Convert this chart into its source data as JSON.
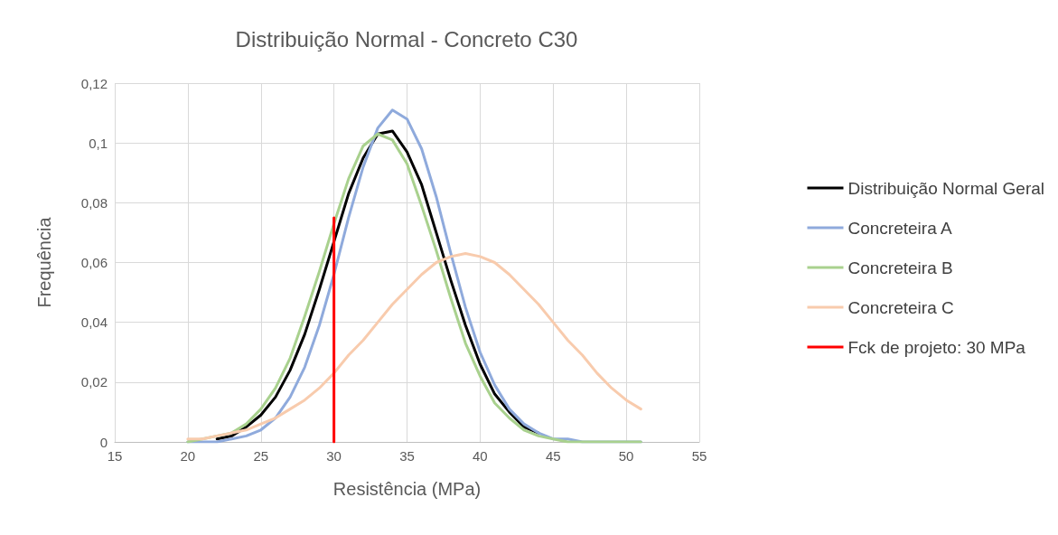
{
  "chart_data": {
    "type": "line",
    "title": "Distribuição Normal - Concreto C30",
    "xlabel": "Resistência (MPa)",
    "ylabel": "Frequência",
    "xlim": [
      15,
      55
    ],
    "xticks": [
      15,
      20,
      25,
      30,
      35,
      40,
      45,
      50,
      55
    ],
    "ylim": [
      0,
      0.12
    ],
    "yticks": [
      {
        "value": 0,
        "label": "0"
      },
      {
        "value": 0.02,
        "label": "0,02"
      },
      {
        "value": 0.04,
        "label": "0,04"
      },
      {
        "value": 0.06,
        "label": "0,06"
      },
      {
        "value": 0.08,
        "label": "0,08"
      },
      {
        "value": 0.1,
        "label": "0,1"
      },
      {
        "value": 0.12,
        "label": "0,12"
      }
    ],
    "grid": true,
    "legend": "right",
    "marker": "none",
    "line_style": "solid",
    "series": [
      {
        "name": "Distribuição Normal Geral",
        "color": "#000000",
        "x": [
          22,
          23,
          24,
          25,
          26,
          27,
          28,
          29,
          30,
          31,
          32,
          33,
          34,
          35,
          36,
          37,
          38,
          39,
          40,
          41,
          42,
          43,
          44
        ],
        "values": [
          0.001,
          0.002,
          0.005,
          0.009,
          0.015,
          0.024,
          0.036,
          0.051,
          0.067,
          0.083,
          0.095,
          0.103,
          0.104,
          0.097,
          0.086,
          0.07,
          0.054,
          0.039,
          0.026,
          0.016,
          0.01,
          0.005,
          0.003
        ]
      },
      {
        "name": "Concreteira A",
        "color": "#8faadc",
        "x": [
          20,
          21,
          22,
          23,
          24,
          25,
          26,
          27,
          28,
          29,
          30,
          31,
          32,
          33,
          34,
          35,
          36,
          37,
          38,
          39,
          40,
          41,
          42,
          43,
          44,
          45,
          46,
          47,
          48,
          49,
          50,
          51
        ],
        "values": [
          0.0,
          0.0,
          0.0,
          0.001,
          0.002,
          0.004,
          0.008,
          0.015,
          0.025,
          0.039,
          0.056,
          0.075,
          0.092,
          0.105,
          0.111,
          0.108,
          0.098,
          0.082,
          0.063,
          0.045,
          0.03,
          0.019,
          0.011,
          0.006,
          0.003,
          0.001,
          0.001,
          0.0,
          0.0,
          0.0,
          0.0,
          0.0
        ]
      },
      {
        "name": "Concreteira B",
        "color": "#a9d18e",
        "x": [
          20,
          21,
          22,
          23,
          24,
          25,
          26,
          27,
          28,
          29,
          30,
          31,
          32,
          33,
          34,
          35,
          36,
          37,
          38,
          39,
          40,
          41,
          42,
          43,
          44,
          45,
          46,
          47,
          48,
          49,
          50,
          51
        ],
        "values": [
          0.0,
          0.001,
          0.002,
          0.003,
          0.006,
          0.011,
          0.018,
          0.028,
          0.042,
          0.057,
          0.073,
          0.088,
          0.099,
          0.103,
          0.101,
          0.093,
          0.079,
          0.064,
          0.048,
          0.033,
          0.022,
          0.013,
          0.008,
          0.004,
          0.002,
          0.001,
          0.0,
          0.0,
          0.0,
          0.0,
          0.0,
          0.0
        ]
      },
      {
        "name": "Concreteira C",
        "color": "#f8cbad",
        "x": [
          20,
          21,
          22,
          23,
          24,
          25,
          26,
          27,
          28,
          29,
          30,
          31,
          32,
          33,
          34,
          35,
          36,
          37,
          38,
          39,
          40,
          41,
          42,
          43,
          44,
          45,
          46,
          47,
          48,
          49,
          50,
          51
        ],
        "values": [
          0.001,
          0.001,
          0.002,
          0.003,
          0.004,
          0.006,
          0.008,
          0.011,
          0.014,
          0.018,
          0.023,
          0.029,
          0.034,
          0.04,
          0.046,
          0.051,
          0.056,
          0.06,
          0.062,
          0.063,
          0.062,
          0.06,
          0.056,
          0.051,
          0.046,
          0.04,
          0.034,
          0.029,
          0.023,
          0.018,
          0.014,
          0.011
        ]
      },
      {
        "name": "Fck de projeto: 30 MPa",
        "color": "#ff0000",
        "x": [
          30,
          30
        ],
        "values": [
          0,
          0.075
        ]
      }
    ]
  }
}
